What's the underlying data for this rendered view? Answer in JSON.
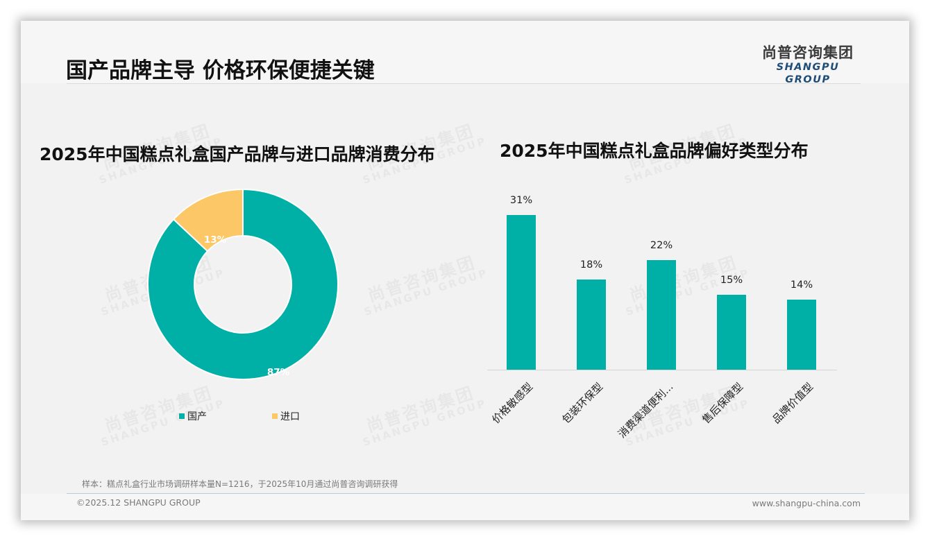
{
  "header": {
    "title": "国产品牌主导 价格环保便捷关键",
    "logo_cn": "尚普咨询集团",
    "logo_en": "SHANGPU GROUP"
  },
  "watermark": {
    "cn": "尚普咨询集团",
    "en": "SHANGPU GROUP"
  },
  "colors": {
    "teal": "#00b0a6",
    "yellow": "#fcc867",
    "background": "#f2f2f2",
    "title_text": "#111111",
    "logo_blue": "#1e4d78"
  },
  "left_chart": {
    "title": "2025年中国糕点礼盒国产品牌与进口品牌消费分布",
    "legend": [
      {
        "label": "国产",
        "color": "#00b0a6"
      },
      {
        "label": "进口",
        "color": "#fcc867"
      }
    ],
    "labels": {
      "domestic": "87%",
      "imported": "13%"
    }
  },
  "right_chart": {
    "title": "2025年中国糕点礼盒品牌偏好类型分布",
    "bars": [
      {
        "label": "价格敏感型",
        "value_label": "31%"
      },
      {
        "label": "包装环保型",
        "value_label": "18%"
      },
      {
        "label": "消费渠道便利...",
        "value_label": "22%"
      },
      {
        "label": "售后保障型",
        "value_label": "15%"
      },
      {
        "label": "品牌价值型",
        "value_label": "14%"
      }
    ]
  },
  "chart_data": [
    {
      "type": "pie",
      "title": "2025年中国糕点礼盒国产品牌与进口品牌消费分布",
      "variant": "donut",
      "categories": [
        "国产",
        "进口"
      ],
      "values": [
        87,
        13
      ],
      "unit": "%",
      "colors": [
        "#00b0a6",
        "#fcc867"
      ],
      "legend_position": "bottom"
    },
    {
      "type": "bar",
      "title": "2025年中国糕点礼盒品牌偏好类型分布",
      "categories": [
        "价格敏感型",
        "包装环保型",
        "消费渠道便利...",
        "售后保障型",
        "品牌价值型"
      ],
      "values": [
        31,
        18,
        22,
        15,
        14
      ],
      "unit": "%",
      "xlabel": "",
      "ylabel": "",
      "ylim": [
        0,
        35
      ],
      "grid": false,
      "color": "#00b0a6",
      "data_labels": true
    }
  ],
  "footer": {
    "source": "样本：糕点礼盒行业市场调研样本量N=1216，于2025年10月通过尚普咨询调研获得",
    "copyright": "©2025.12 SHANGPU GROUP",
    "website": "www.shangpu-china.com"
  }
}
